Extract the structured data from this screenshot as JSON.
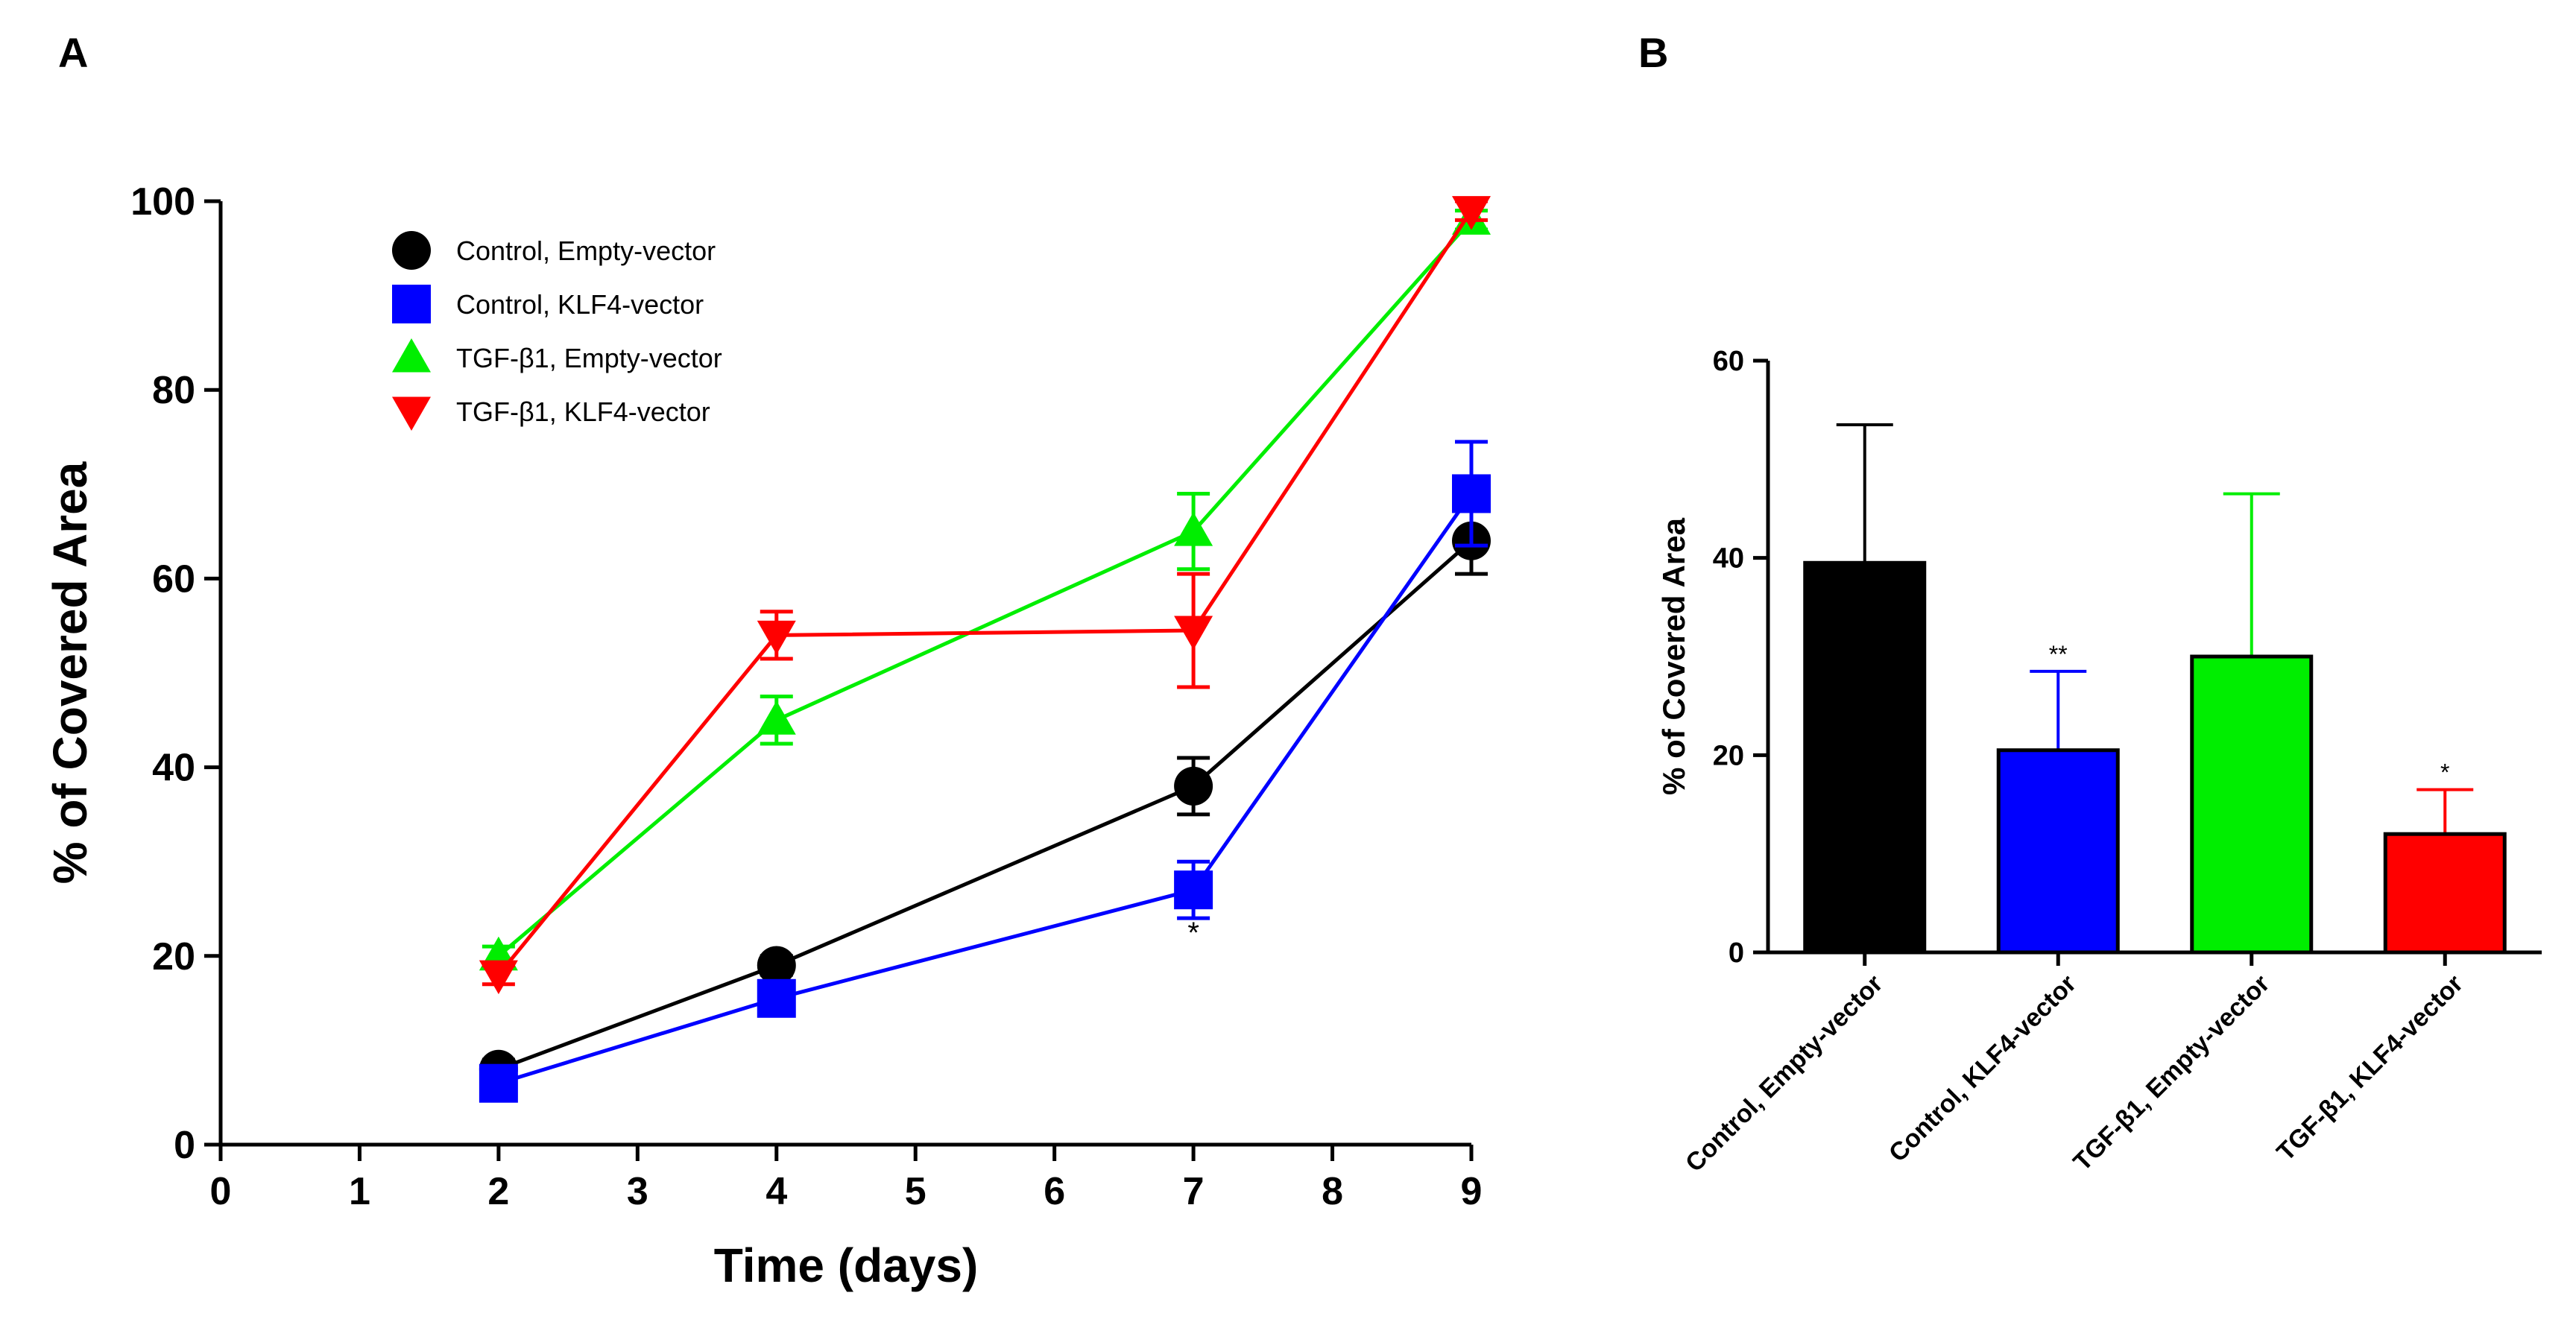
{
  "panels": {
    "a": {
      "letter": "A"
    },
    "b": {
      "letter": "B"
    }
  },
  "chart_data": [
    {
      "type": "line",
      "xlabel": "Time (days)",
      "ylabel": "% of Covered Area",
      "xlim": [
        0,
        9
      ],
      "ylim": [
        0,
        100
      ],
      "xticks": [
        "0",
        "1",
        "2",
        "3",
        "4",
        "5",
        "6",
        "7",
        "8",
        "9"
      ],
      "yticks": [
        "0",
        "20",
        "40",
        "60",
        "80",
        "100"
      ],
      "legend_position": "top-left",
      "x": [
        2,
        4,
        7,
        9
      ],
      "series": [
        {
          "name": "Control, Empty-vector",
          "color": "#000000",
          "marker": "circle",
          "values": [
            8,
            19,
            38,
            64
          ],
          "errors": [
            1,
            1,
            3,
            3.5
          ]
        },
        {
          "name": "Control, KLF4-vector",
          "color": "#0000ff",
          "marker": "square",
          "values": [
            6.5,
            15.5,
            27,
            69
          ],
          "errors": [
            1,
            1.5,
            3,
            5.5
          ]
        },
        {
          "name": "TGF-β1, Empty-vector",
          "color": "#00ee00",
          "marker": "triangle-up",
          "values": [
            20,
            45,
            65,
            98
          ],
          "errors": [
            1,
            2.5,
            4,
            1
          ]
        },
        {
          "name": "TGF-β1, KLF4-vector",
          "color": "#ff0000",
          "marker": "triangle-down",
          "values": [
            18,
            54,
            54.5,
            99
          ],
          "errors": [
            1,
            2.5,
            6,
            1
          ]
        }
      ],
      "annotations": [
        {
          "x": 7,
          "text": "*"
        }
      ]
    },
    {
      "type": "bar",
      "ylabel": "% of Covered Area",
      "ylim": [
        0,
        60
      ],
      "yticks": [
        "0",
        "20",
        "40",
        "60"
      ],
      "categories": [
        "Control, Empty-vector",
        "Control, KLF4-vector",
        "TGF-β1, Empty-vector",
        "TGF-β1, KLF4-vector"
      ],
      "values": [
        39.5,
        20.5,
        30,
        12
      ],
      "errors": [
        14,
        8,
        16.5,
        4.5
      ],
      "colors": [
        "#000000",
        "#0000ff",
        "#00ee00",
        "#ff0000"
      ],
      "significance": [
        "",
        "**",
        "",
        "*"
      ]
    }
  ]
}
